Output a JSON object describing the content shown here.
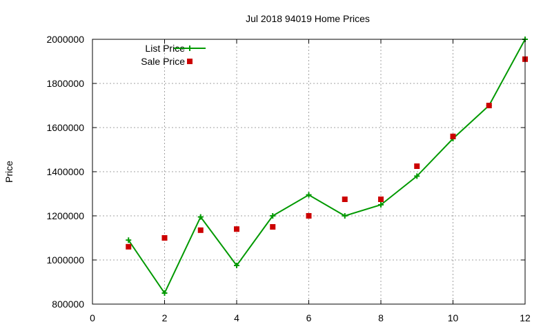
{
  "chart_data": {
    "type": "line",
    "title": "Jul 2018 94019 Home Prices",
    "xlabel": "",
    "ylabel": "Price",
    "xlim": [
      0,
      12
    ],
    "ylim": [
      800000,
      2000000
    ],
    "xticks": [
      0,
      2,
      4,
      6,
      8,
      10,
      12
    ],
    "yticks": [
      800000,
      1000000,
      1200000,
      1400000,
      1600000,
      1800000,
      2000000
    ],
    "grid": true,
    "legend_position": "top-left",
    "series": [
      {
        "name": "List Price",
        "style": "line+cross",
        "color": "#009900",
        "points": [
          [
            1,
            1090000
          ],
          [
            2,
            850000
          ],
          [
            3,
            1195000
          ],
          [
            4,
            975000
          ],
          [
            5,
            1200000
          ],
          [
            6,
            1295000
          ],
          [
            7,
            1200000
          ],
          [
            8,
            1250000
          ],
          [
            9,
            1380000
          ],
          [
            10,
            1550000
          ],
          [
            11,
            1700000
          ],
          [
            12,
            2000000
          ]
        ]
      },
      {
        "name": "Sale Price",
        "style": "square",
        "color": "#cc0000",
        "points": [
          [
            1,
            1060000
          ],
          [
            2,
            1100000
          ],
          [
            3,
            1135000
          ],
          [
            4,
            1140000
          ],
          [
            5,
            1150000
          ],
          [
            6,
            1200000
          ],
          [
            7,
            1275000
          ],
          [
            8,
            1275000
          ],
          [
            9,
            1425000
          ],
          [
            10,
            1560000
          ],
          [
            11,
            1700000
          ],
          [
            12,
            1910000
          ]
        ]
      }
    ]
  }
}
